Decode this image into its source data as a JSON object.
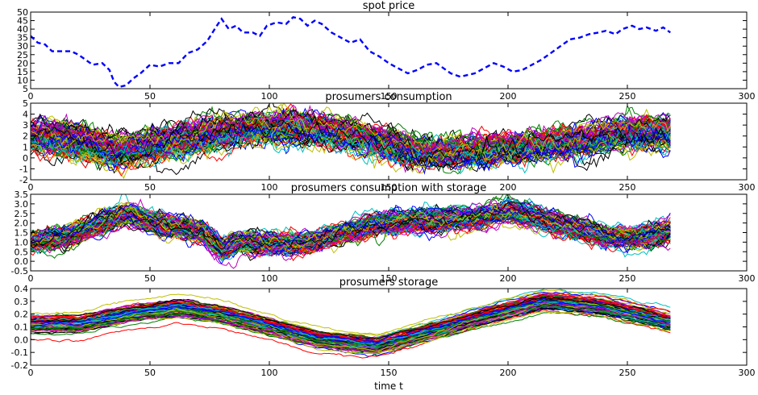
{
  "chart_data": [
    {
      "type": "line",
      "title": "spot price",
      "xlabel": "",
      "ylabel": "",
      "xlim": [
        0,
        300
      ],
      "ylim": [
        5,
        50
      ],
      "xticks": [
        0,
        50,
        100,
        150,
        200,
        250,
        300
      ],
      "yticks": [
        5,
        10,
        15,
        20,
        25,
        30,
        35,
        40,
        45,
        50
      ],
      "grid": false,
      "series": [
        {
          "style": "dashed",
          "color": "#0000ff",
          "points": [
            [
              0,
              36
            ],
            [
              3,
              32
            ],
            [
              6,
              31
            ],
            [
              9,
              27
            ],
            [
              13,
              27
            ],
            [
              17,
              27
            ],
            [
              20,
              25
            ],
            [
              23,
              22
            ],
            [
              26,
              19
            ],
            [
              30,
              20
            ],
            [
              33,
              16
            ],
            [
              35,
              9
            ],
            [
              37,
              6
            ],
            [
              40,
              7
            ],
            [
              43,
              11
            ],
            [
              46,
              14
            ],
            [
              50,
              19
            ],
            [
              54,
              18
            ],
            [
              58,
              20
            ],
            [
              62,
              20
            ],
            [
              66,
              26
            ],
            [
              70,
              28
            ],
            [
              74,
              33
            ],
            [
              78,
              42
            ],
            [
              80,
              46
            ],
            [
              83,
              40
            ],
            [
              86,
              42
            ],
            [
              89,
              38
            ],
            [
              93,
              38
            ],
            [
              96,
              36
            ],
            [
              99,
              42
            ],
            [
              103,
              44
            ],
            [
              107,
              43
            ],
            [
              110,
              47
            ],
            [
              113,
              46
            ],
            [
              116,
              42
            ],
            [
              119,
              45
            ],
            [
              122,
              43
            ],
            [
              126,
              38
            ],
            [
              130,
              35
            ],
            [
              134,
              32
            ],
            [
              138,
              34
            ],
            [
              142,
              27
            ],
            [
              146,
              24
            ],
            [
              150,
              20
            ],
            [
              154,
              17
            ],
            [
              158,
              14
            ],
            [
              162,
              16
            ],
            [
              166,
              19
            ],
            [
              170,
              20
            ],
            [
              173,
              17
            ],
            [
              176,
              14
            ],
            [
              180,
              12
            ],
            [
              183,
              13
            ],
            [
              186,
              14
            ],
            [
              190,
              17
            ],
            [
              194,
              20
            ],
            [
              198,
              18
            ],
            [
              202,
              15
            ],
            [
              206,
              16
            ],
            [
              210,
              19
            ],
            [
              214,
              22
            ],
            [
              218,
              26
            ],
            [
              222,
              30
            ],
            [
              226,
              34
            ],
            [
              230,
              35
            ],
            [
              234,
              37
            ],
            [
              238,
              38
            ],
            [
              241,
              39
            ],
            [
              245,
              37
            ],
            [
              248,
              40
            ],
            [
              252,
              42
            ],
            [
              255,
              40
            ],
            [
              258,
              41
            ],
            [
              262,
              39
            ],
            [
              265,
              41
            ],
            [
              268,
              38
            ]
          ]
        }
      ]
    },
    {
      "type": "line",
      "title": "prosumers consumption",
      "xlabel": "",
      "ylabel": "",
      "xlim": [
        0,
        300
      ],
      "ylim": [
        -2,
        5
      ],
      "xticks": [
        0,
        50,
        100,
        150,
        200,
        250,
        300
      ],
      "yticks": [
        -2,
        -1,
        0,
        1,
        2,
        3,
        4,
        5
      ],
      "grid": false,
      "series_count": 120,
      "mean_profile": [
        [
          0,
          1.9
        ],
        [
          15,
          1.7
        ],
        [
          25,
          1.2
        ],
        [
          35,
          0.6
        ],
        [
          45,
          0.9
        ],
        [
          55,
          1.3
        ],
        [
          70,
          2.0
        ],
        [
          90,
          2.6
        ],
        [
          110,
          2.9
        ],
        [
          125,
          2.5
        ],
        [
          140,
          1.8
        ],
        [
          150,
          1.2
        ],
        [
          160,
          0.6
        ],
        [
          175,
          0.4
        ],
        [
          190,
          0.7
        ],
        [
          205,
          0.9
        ],
        [
          220,
          1.3
        ],
        [
          235,
          1.7
        ],
        [
          250,
          2.2
        ],
        [
          268,
          2.4
        ]
      ],
      "spread": 0.9,
      "noise": 0.32
    },
    {
      "type": "line",
      "title": "prosumers consumption with storage",
      "xlabel": "",
      "ylabel": "",
      "xlim": [
        0,
        300
      ],
      "ylim": [
        -0.5,
        3.5
      ],
      "xticks": [
        0,
        50,
        100,
        150,
        200,
        250,
        300
      ],
      "yticks": [
        -0.5,
        0.0,
        0.5,
        1.0,
        1.5,
        2.0,
        2.5,
        3.0,
        3.5
      ],
      "grid": false,
      "series_count": 120,
      "mean_profile": [
        [
          0,
          1.0
        ],
        [
          15,
          1.3
        ],
        [
          30,
          2.0
        ],
        [
          40,
          2.5
        ],
        [
          50,
          2.1
        ],
        [
          60,
          1.8
        ],
        [
          72,
          1.5
        ],
        [
          80,
          0.6
        ],
        [
          88,
          1.0
        ],
        [
          100,
          0.9
        ],
        [
          115,
          0.9
        ],
        [
          130,
          1.4
        ],
        [
          145,
          1.9
        ],
        [
          160,
          2.1
        ],
        [
          175,
          2.2
        ],
        [
          190,
          2.3
        ],
        [
          200,
          2.6
        ],
        [
          210,
          2.3
        ],
        [
          225,
          1.8
        ],
        [
          240,
          1.3
        ],
        [
          255,
          1.2
        ],
        [
          268,
          1.6
        ]
      ],
      "spread": 0.4,
      "noise": 0.12
    },
    {
      "type": "line",
      "title": "prosumers storage",
      "xlabel": "time t",
      "ylabel": "",
      "xlim": [
        0,
        300
      ],
      "ylim": [
        -0.2,
        0.4
      ],
      "xticks": [
        0,
        50,
        100,
        150,
        200,
        250,
        300
      ],
      "yticks": [
        -0.2,
        -0.1,
        0.0,
        0.1,
        0.2,
        0.3,
        0.4
      ],
      "grid": false,
      "series_count": 100,
      "mean_profile": [
        [
          0,
          0.12
        ],
        [
          20,
          0.12
        ],
        [
          40,
          0.2
        ],
        [
          62,
          0.25
        ],
        [
          80,
          0.2
        ],
        [
          100,
          0.1
        ],
        [
          120,
          0.0
        ],
        [
          145,
          -0.05
        ],
        [
          165,
          0.05
        ],
        [
          190,
          0.18
        ],
        [
          215,
          0.3
        ],
        [
          240,
          0.26
        ],
        [
          268,
          0.14
        ]
      ],
      "spread": 0.07,
      "noise": 0.004
    }
  ],
  "colors": [
    "#0000ff",
    "#008000",
    "#ff0000",
    "#00bfbf",
    "#bf00bf",
    "#bfbf00",
    "#000000"
  ]
}
